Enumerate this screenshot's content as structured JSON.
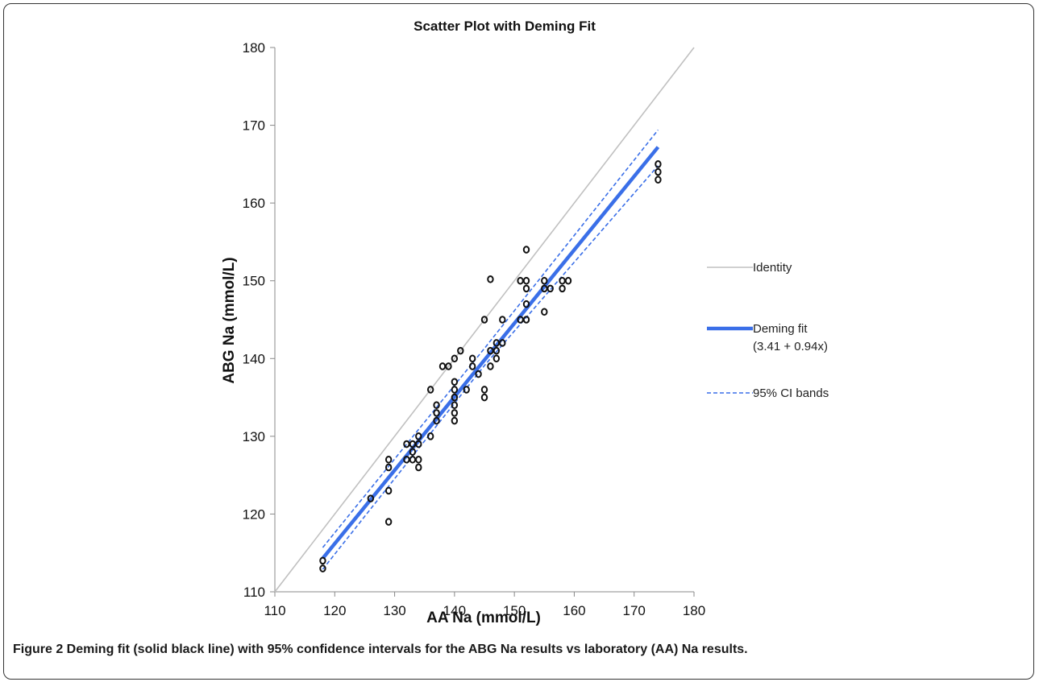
{
  "figure": {
    "caption_label": "Figure 2",
    "caption_text": " Deming fit (solid black line) with 95% confidence intervals for the ABG Na results vs laboratory (AA) Na results."
  },
  "chart_data": {
    "type": "scatter",
    "title": "Scatter Plot with Deming Fit",
    "xlabel": "AA Na (mmol/L)",
    "ylabel": "ABG Na (mmol/L)",
    "xlim": [
      110,
      180
    ],
    "ylim": [
      110,
      180
    ],
    "xticks": [
      "110",
      "120",
      "130",
      "140",
      "150",
      "160",
      "170",
      "180"
    ],
    "yticks": [
      "110",
      "120",
      "130",
      "140",
      "150",
      "160",
      "170",
      "180"
    ],
    "grid": false,
    "legend_position": "right",
    "colors": {
      "identity": "#c0c0c0",
      "fit": "#3a6fe8",
      "ci": "#3a6fe8",
      "points": "#111111"
    },
    "legend": [
      {
        "key": "identity",
        "label": "Identity",
        "label2": ""
      },
      {
        "key": "fit",
        "label": "Deming fit",
        "label2": "(3.41 + 0.94x)"
      },
      {
        "key": "ci",
        "label": "95% CI bands",
        "label2": ""
      }
    ],
    "series": [
      {
        "key": "points",
        "points": [
          [
            118,
            114
          ],
          [
            118,
            113
          ],
          [
            126,
            122
          ],
          [
            129,
            127
          ],
          [
            129,
            126
          ],
          [
            129,
            123
          ],
          [
            129,
            119
          ],
          [
            132,
            129
          ],
          [
            132,
            127
          ],
          [
            133,
            129
          ],
          [
            133,
            128
          ],
          [
            133,
            127
          ],
          [
            134,
            130
          ],
          [
            134,
            129
          ],
          [
            134,
            127
          ],
          [
            134,
            126
          ],
          [
            136,
            136
          ],
          [
            136,
            130
          ],
          [
            137,
            134
          ],
          [
            137,
            133
          ],
          [
            137,
            132
          ],
          [
            138,
            139
          ],
          [
            139,
            139
          ],
          [
            140,
            140
          ],
          [
            140,
            137
          ],
          [
            140,
            136
          ],
          [
            140,
            135
          ],
          [
            140,
            134
          ],
          [
            140,
            133
          ],
          [
            140,
            132
          ],
          [
            141,
            141
          ],
          [
            142,
            136
          ],
          [
            143,
            140
          ],
          [
            143,
            139
          ],
          [
            144,
            138
          ],
          [
            145,
            145
          ],
          [
            145,
            136
          ],
          [
            145,
            135
          ],
          [
            146,
            150.2
          ],
          [
            146,
            141
          ],
          [
            146,
            139
          ],
          [
            147,
            142
          ],
          [
            147,
            141
          ],
          [
            147,
            140
          ],
          [
            148,
            145
          ],
          [
            148,
            142
          ],
          [
            151,
            150
          ],
          [
            151,
            145
          ],
          [
            152,
            154
          ],
          [
            152,
            150
          ],
          [
            152,
            149
          ],
          [
            152,
            147
          ],
          [
            152,
            145
          ],
          [
            155,
            150
          ],
          [
            155,
            149
          ],
          [
            155,
            146
          ],
          [
            156,
            149
          ],
          [
            158,
            150
          ],
          [
            158,
            149
          ],
          [
            159,
            150
          ],
          [
            174,
            165
          ],
          [
            174,
            164
          ],
          [
            174,
            163
          ]
        ]
      },
      {
        "key": "identity",
        "line": [
          [
            110,
            110
          ],
          [
            180,
            180
          ]
        ]
      },
      {
        "key": "fit",
        "line": [
          [
            118,
            114.3
          ],
          [
            174,
            167.2
          ]
        ]
      },
      {
        "key": "ci_upper",
        "line": [
          [
            118,
            115.7
          ],
          [
            145,
            141.3
          ],
          [
            174,
            169.4
          ]
        ]
      },
      {
        "key": "ci_lower",
        "line": [
          [
            118,
            112.9
          ],
          [
            145,
            139.1
          ],
          [
            174,
            164.8
          ]
        ]
      }
    ]
  }
}
